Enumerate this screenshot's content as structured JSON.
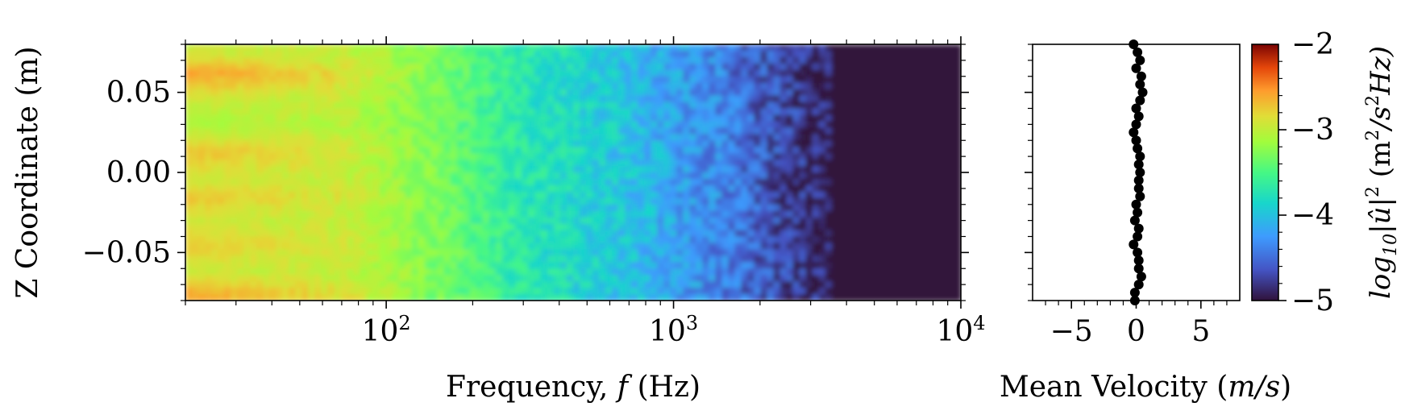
{
  "chart_data": [
    {
      "type": "heatmap",
      "xlabel": "Frequency, f (Hz)",
      "ylabel": "Z Coordinate (m)",
      "x_scale": "log",
      "xlim": [
        20,
        10000
      ],
      "ylim": [
        -0.08,
        0.08
      ],
      "x_ticks": [
        {
          "value": 100,
          "base": "10",
          "exp": "2"
        },
        {
          "value": 1000,
          "base": "10",
          "exp": "3"
        },
        {
          "value": 10000,
          "base": "10",
          "exp": "4"
        }
      ],
      "y_ticks": [
        {
          "value": 0.05,
          "label": "0.05"
        },
        {
          "value": 0.0,
          "label": "0.00"
        },
        {
          "value": -0.05,
          "label": "−0.05"
        }
      ],
      "colormap": "turbo",
      "color_range": [
        -5,
        -2
      ],
      "bands_z": [
        0.075,
        0.062,
        0.045,
        0.03,
        0.012,
        -0.005,
        -0.015,
        -0.03,
        -0.045,
        -0.062,
        -0.075
      ],
      "bands_level": [
        -2.95,
        -2.55,
        -2.95,
        -3.1,
        -2.7,
        -2.95,
        -2.7,
        -2.95,
        -2.75,
        -2.95,
        -2.6
      ],
      "rolloff": [
        {
          "f": 20,
          "level": -2.85
        },
        {
          "f": 70,
          "level": -2.95
        },
        {
          "f": 150,
          "level": -3.3
        },
        {
          "f": 300,
          "level": -3.7
        },
        {
          "f": 700,
          "level": -4.0
        },
        {
          "f": 1500,
          "level": -4.4
        },
        {
          "f": 2500,
          "level": -4.75
        },
        {
          "f": 3500,
          "level": -5.0
        },
        {
          "f": 10000,
          "level": -5.0
        }
      ]
    },
    {
      "type": "scatter",
      "xlabel": "Mean Velocity (m/s)",
      "x_ticks": [
        {
          "value": -5,
          "label": "−5"
        },
        {
          "value": 0,
          "label": "0"
        },
        {
          "value": 5,
          "label": "5"
        }
      ],
      "xlim": [
        -8,
        8
      ],
      "ylim": [
        -0.08,
        0.08
      ],
      "series": [
        {
          "points": [
            {
              "x": -0.2,
              "y": 0.08
            },
            {
              "x": 0.1,
              "y": 0.075
            },
            {
              "x": 0.3,
              "y": 0.07
            },
            {
              "x": 0.0,
              "y": 0.065
            },
            {
              "x": 0.4,
              "y": 0.06
            },
            {
              "x": 0.3,
              "y": 0.055
            },
            {
              "x": 0.5,
              "y": 0.05
            },
            {
              "x": 0.3,
              "y": 0.045
            },
            {
              "x": 0.0,
              "y": 0.04
            },
            {
              "x": 0.2,
              "y": 0.035
            },
            {
              "x": 0.0,
              "y": 0.03
            },
            {
              "x": -0.2,
              "y": 0.025
            },
            {
              "x": 0.0,
              "y": 0.02
            },
            {
              "x": 0.1,
              "y": 0.015
            },
            {
              "x": 0.3,
              "y": 0.01
            },
            {
              "x": 0.2,
              "y": 0.005
            },
            {
              "x": 0.3,
              "y": 0.0
            },
            {
              "x": 0.2,
              "y": -0.005
            },
            {
              "x": 0.2,
              "y": -0.01
            },
            {
              "x": 0.3,
              "y": -0.015
            },
            {
              "x": 0.0,
              "y": -0.02
            },
            {
              "x": 0.1,
              "y": -0.025
            },
            {
              "x": -0.1,
              "y": -0.03
            },
            {
              "x": 0.2,
              "y": -0.035
            },
            {
              "x": 0.1,
              "y": -0.04
            },
            {
              "x": -0.2,
              "y": -0.045
            },
            {
              "x": 0.1,
              "y": -0.05
            },
            {
              "x": 0.2,
              "y": -0.055
            },
            {
              "x": 0.2,
              "y": -0.06
            },
            {
              "x": 0.4,
              "y": -0.065
            },
            {
              "x": 0.2,
              "y": -0.07
            },
            {
              "x": -0.1,
              "y": -0.075
            },
            {
              "x": -0.1,
              "y": -0.08
            }
          ]
        }
      ]
    }
  ],
  "colorbar": {
    "ticks": [
      {
        "value": -2,
        "label": "−2"
      },
      {
        "value": -3,
        "label": "−3"
      },
      {
        "value": -4,
        "label": "−4"
      },
      {
        "value": -5,
        "label": "−5"
      }
    ],
    "label": "log10|û|² (m²/s²Hz)",
    "label_parts": {
      "log": "log",
      "sub": "10",
      "abs_open": "|",
      "hat": "û",
      "abs_close": "|",
      "sup": "2",
      "unit_open": " (m",
      "unit_sup": "2",
      "unit_mid": "/s",
      "unit_sup2": "2",
      "unit_end": "Hz)"
    }
  },
  "labels": {
    "freq_prefix": "Frequency, ",
    "freq_var": "f",
    "freq_suffix": " (Hz)",
    "z_label": "Z Coordinate (m)",
    "vel_prefix": "Mean Velocity (",
    "vel_var": "m/s",
    "vel_suffix": ")"
  }
}
